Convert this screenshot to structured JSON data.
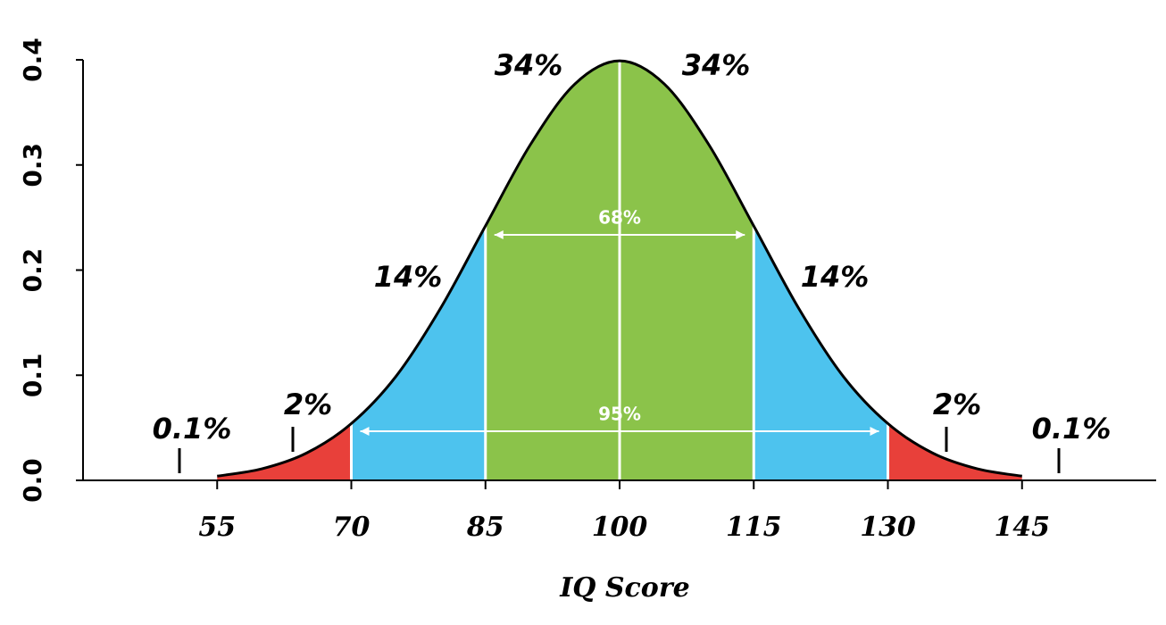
{
  "chart_data": {
    "type": "area",
    "x_label": "IQ Score",
    "x": [
      55,
      60,
      65,
      70,
      75,
      80,
      85,
      90,
      95,
      100,
      105,
      110,
      115,
      120,
      125,
      130,
      135,
      140,
      145
    ],
    "series": [
      {
        "color": "#000000",
        "values": [
          0.004,
          0.011,
          0.026,
          0.054,
          0.099,
          0.164,
          0.242,
          0.319,
          0.377,
          0.399,
          0.377,
          0.319,
          0.242,
          0.164,
          0.099,
          0.054,
          0.026,
          0.011,
          0.004
        ]
      }
    ],
    "regions": [
      {
        "from": 55,
        "to": 70,
        "color": "#e8403a"
      },
      {
        "from": 70,
        "to": 85,
        "color": "#4dc3ee"
      },
      {
        "from": 85,
        "to": 115,
        "color": "#8bc34a"
      },
      {
        "from": 115,
        "to": 130,
        "color": "#4dc3ee"
      },
      {
        "from": 130,
        "to": 145,
        "color": "#e8403a"
      }
    ],
    "area_labels": [
      "0.1%",
      "2%",
      "14%",
      "34%",
      "34%",
      "14%",
      "2%",
      "0.1%"
    ],
    "spans": [
      {
        "label": "68%",
        "from": 85,
        "to": 115
      },
      {
        "label": "95%",
        "from": 70,
        "to": 130
      }
    ],
    "xlim": [
      40,
      160
    ],
    "xticks": [
      55,
      70,
      85,
      100,
      115,
      130,
      145
    ],
    "ylim": [
      0,
      0.4
    ],
    "yticks": [
      {
        "value": 0,
        "label": "0.0"
      },
      0.1,
      0.2,
      0.3,
      0.4
    ]
  }
}
